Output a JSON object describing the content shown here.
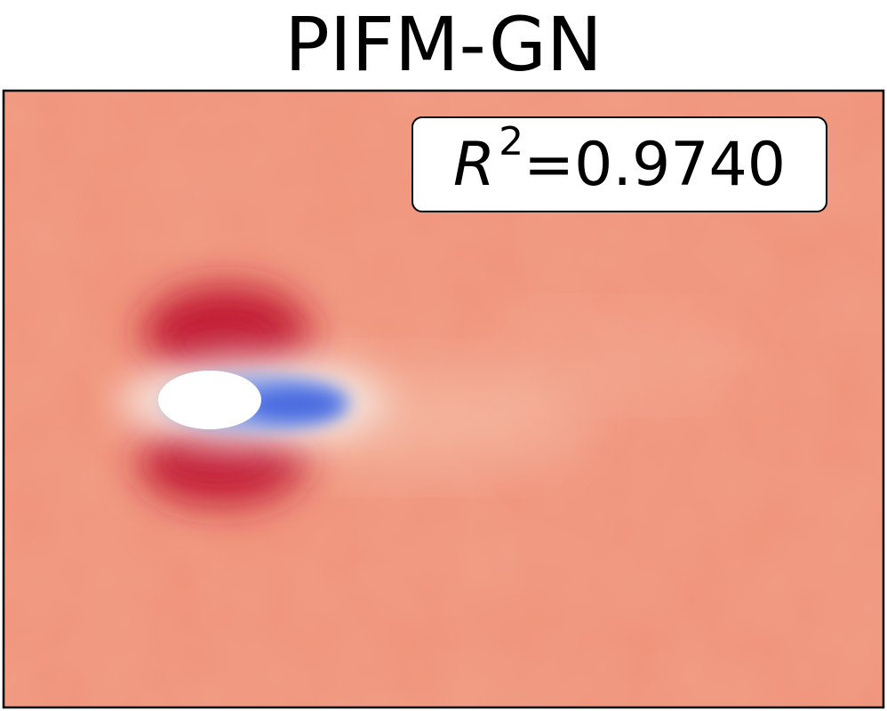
{
  "chart_data": {
    "type": "heatmap",
    "title": "PIFM-GN",
    "annotation": {
      "symbol": "R",
      "exponent": "2",
      "equals": "=",
      "value": "0.9740"
    },
    "colormap": "coolwarm",
    "background_color": "#f0937a",
    "colors": {
      "high": "#c21f35",
      "low": "#4a6be0",
      "light": "#f6c4ae",
      "obstacle": "#ffffff"
    },
    "grid": false,
    "axes_visible": false
  }
}
